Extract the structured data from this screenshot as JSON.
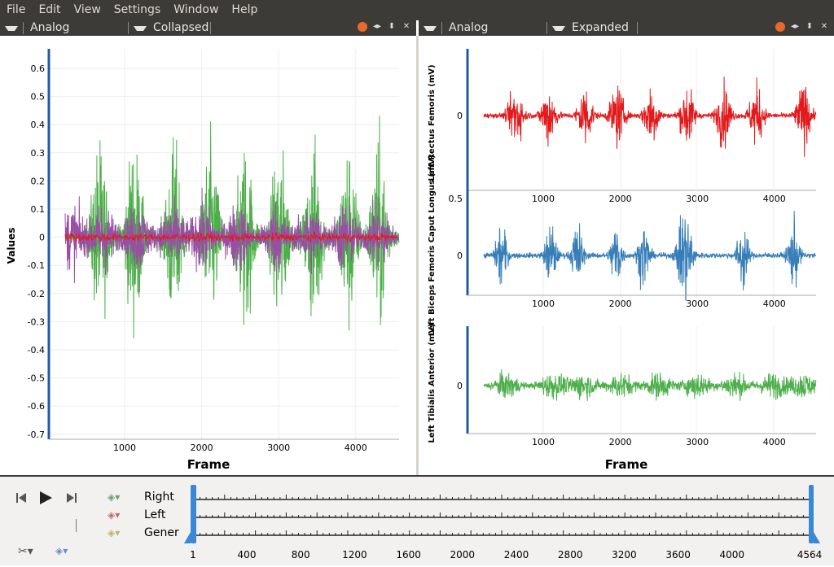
{
  "menu": [
    "File",
    "Edit",
    "View",
    "Settings",
    "Window",
    "Help"
  ],
  "left_panel": {
    "type_label": "Analog",
    "mode_label": "Collapsed"
  },
  "right_panel": {
    "type_label": "Analog",
    "mode_label": "Expanded"
  },
  "left_chart": {
    "ylabel": "Values",
    "xlabel": "Frame",
    "yticks": [
      "0.6",
      "0.5",
      "0.4",
      "0.3",
      "0.2",
      "0.1",
      "0",
      "-0.1",
      "-0.2",
      "-0.3",
      "-0.4",
      "-0.5",
      "-0.6",
      "-0.7"
    ],
    "xticks": [
      "1000",
      "2000",
      "3000",
      "4000"
    ]
  },
  "right_charts": [
    {
      "ylabel": "Left Rectus Femoris (mV)",
      "yticks": [
        "0"
      ],
      "xticks": [
        "1000",
        "2000",
        "3000",
        "4000"
      ],
      "color": "#e31a1c"
    },
    {
      "ylabel": "Left Biceps Femoris Caput Longus (mV)",
      "yticks": [
        "0.5",
        "0"
      ],
      "xticks": [
        "1000",
        "2000",
        "3000",
        "4000"
      ],
      "color": "#377eb8"
    },
    {
      "ylabel": "Left Tibialis Anterior (mV)",
      "yticks": [
        "0"
      ],
      "xticks": [
        "1000",
        "2000",
        "3000",
        "4000"
      ],
      "color": "#4daf4a"
    }
  ],
  "right_xlabel": "Frame",
  "timeline": {
    "tracks": [
      "Right",
      "Left",
      "Gener"
    ],
    "ticks": [
      "1",
      "400",
      "800",
      "1200",
      "1600",
      "2000",
      "2400",
      "2800",
      "3200",
      "3600",
      "4000",
      "4564"
    ]
  },
  "chart_data": [
    {
      "type": "line",
      "xlabel": "Frame",
      "ylabel": "Values",
      "xlim": [
        0,
        4564
      ],
      "ylim": [
        -0.72,
        0.66
      ],
      "series": [
        {
          "color": "#4daf4a"
        },
        {
          "color": "#984ea3"
        },
        {
          "color": "#e31a1c"
        }
      ]
    },
    {
      "type": "line",
      "xlabel": "Frame",
      "ylabel": "Left Rectus Femoris (mV)",
      "xlim": [
        0,
        4564
      ]
    },
    {
      "type": "line",
      "xlabel": "Frame",
      "ylabel": "Left Biceps Femoris Caput Longus (mV)",
      "xlim": [
        0,
        4564
      ]
    },
    {
      "type": "line",
      "xlabel": "Frame",
      "ylabel": "Left Tibialis Anterior (mV)",
      "xlim": [
        0,
        4564
      ]
    }
  ]
}
